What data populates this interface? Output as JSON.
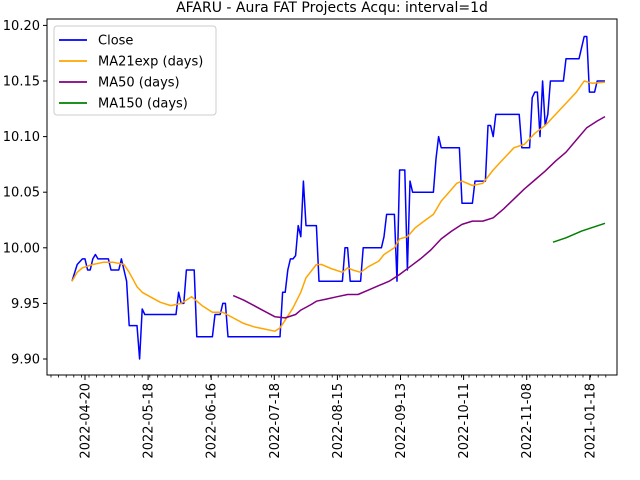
{
  "chart_data": {
    "type": "line",
    "title": "AFARU - Aura FAT Projects Acqu: interval=1d",
    "xlabel": "",
    "ylabel": "",
    "ylim": [
      9.895,
      10.205
    ],
    "grid": false,
    "legend_position": "top-left",
    "x_tick_labels": [
      "2022-04-20",
      "2022-05-18",
      "2022-06-16",
      "2022-07-18",
      "2022-08-15",
      "2022-09-13",
      "2022-10-11",
      "2022-11-08",
      "2021-01-18"
    ],
    "y_tick_labels": [
      "9.90",
      "9.95",
      "10.00",
      "10.05",
      "10.10",
      "10.15",
      "10.20"
    ],
    "series": [
      {
        "name": "Close",
        "color": "#0000ff",
        "points": [
          [
            0,
            9.97
          ],
          [
            2,
            9.985
          ],
          [
            4,
            9.99
          ],
          [
            5,
            9.99
          ],
          [
            6,
            9.98
          ],
          [
            7,
            9.98
          ],
          [
            8,
            9.99
          ],
          [
            9,
            9.994
          ],
          [
            10,
            9.99
          ],
          [
            14,
            9.99
          ],
          [
            15,
            9.98
          ],
          [
            18,
            9.98
          ],
          [
            19,
            9.99
          ],
          [
            20,
            9.98
          ],
          [
            21,
            9.97
          ],
          [
            22,
            9.93
          ],
          [
            25,
            9.93
          ],
          [
            26,
            9.9
          ],
          [
            27,
            9.945
          ],
          [
            28,
            9.94
          ],
          [
            40,
            9.94
          ],
          [
            41,
            9.96
          ],
          [
            42,
            9.95
          ],
          [
            43,
            9.95
          ],
          [
            44,
            9.98
          ],
          [
            47,
            9.98
          ],
          [
            48,
            9.92
          ],
          [
            54,
            9.92
          ],
          [
            55,
            9.94
          ],
          [
            57,
            9.94
          ],
          [
            58,
            9.95
          ],
          [
            59,
            9.95
          ],
          [
            60,
            9.92
          ],
          [
            80,
            9.92
          ],
          [
            81,
            9.96
          ],
          [
            82,
            9.96
          ],
          [
            83,
            9.98
          ],
          [
            84,
            9.99
          ],
          [
            85,
            9.99
          ],
          [
            86,
            9.993
          ],
          [
            87,
            10.02
          ],
          [
            88,
            10.01
          ],
          [
            89,
            10.06
          ],
          [
            90,
            10.02
          ],
          [
            94,
            10.02
          ],
          [
            95,
            9.97
          ],
          [
            104,
            9.97
          ],
          [
            105,
            10.0
          ],
          [
            106,
            10.0
          ],
          [
            107,
            9.97
          ],
          [
            111,
            9.97
          ],
          [
            112,
            10.0
          ],
          [
            119,
            10.0
          ],
          [
            120,
            10.01
          ],
          [
            121,
            10.03
          ],
          [
            124,
            10.03
          ],
          [
            125,
            9.97
          ],
          [
            126,
            10.07
          ],
          [
            128,
            10.07
          ],
          [
            129,
            9.98
          ],
          [
            130,
            10.06
          ],
          [
            131,
            10.05
          ],
          [
            139,
            10.05
          ],
          [
            140,
            10.08
          ],
          [
            141,
            10.1
          ],
          [
            142,
            10.09
          ],
          [
            149,
            10.09
          ],
          [
            150,
            10.04
          ],
          [
            154,
            10.04
          ],
          [
            155,
            10.06
          ],
          [
            159,
            10.06
          ],
          [
            160,
            10.11
          ],
          [
            161,
            10.11
          ],
          [
            162,
            10.1
          ],
          [
            163,
            10.12
          ],
          [
            172,
            10.12
          ],
          [
            173,
            10.09
          ],
          [
            176,
            10.09
          ],
          [
            177,
            10.135
          ],
          [
            178,
            10.14
          ],
          [
            179,
            10.14
          ],
          [
            180,
            10.1
          ],
          [
            181,
            10.15
          ],
          [
            182,
            10.11
          ],
          [
            183,
            10.12
          ],
          [
            184,
            10.15
          ],
          [
            189,
            10.15
          ],
          [
            190,
            10.17
          ],
          [
            195,
            10.17
          ],
          [
            197,
            10.19
          ],
          [
            198,
            10.19
          ],
          [
            199,
            10.14
          ],
          [
            201,
            10.14
          ],
          [
            202,
            10.15
          ],
          [
            205,
            10.15
          ]
        ]
      },
      {
        "name": "MA21exp (days)",
        "color": "#ffa500",
        "points": [
          [
            0,
            9.97
          ],
          [
            2,
            9.978
          ],
          [
            4,
            9.982
          ],
          [
            8,
            9.985
          ],
          [
            12,
            9.987
          ],
          [
            16,
            9.987
          ],
          [
            20,
            9.985
          ],
          [
            22,
            9.978
          ],
          [
            25,
            9.965
          ],
          [
            27,
            9.96
          ],
          [
            30,
            9.956
          ],
          [
            34,
            9.951
          ],
          [
            38,
            9.948
          ],
          [
            42,
            9.95
          ],
          [
            46,
            9.956
          ],
          [
            50,
            9.948
          ],
          [
            54,
            9.942
          ],
          [
            58,
            9.942
          ],
          [
            62,
            9.937
          ],
          [
            66,
            9.932
          ],
          [
            70,
            9.929
          ],
          [
            74,
            9.927
          ],
          [
            78,
            9.925
          ],
          [
            80,
            9.928
          ],
          [
            82,
            9.935
          ],
          [
            85,
            9.946
          ],
          [
            88,
            9.96
          ],
          [
            90,
            9.973
          ],
          [
            94,
            9.985
          ],
          [
            96,
            9.985
          ],
          [
            100,
            9.981
          ],
          [
            104,
            9.978
          ],
          [
            106,
            9.982
          ],
          [
            108,
            9.98
          ],
          [
            111,
            9.978
          ],
          [
            114,
            9.983
          ],
          [
            118,
            9.988
          ],
          [
            120,
            9.994
          ],
          [
            124,
            10.0
          ],
          [
            126,
            10.008
          ],
          [
            129,
            10.01
          ],
          [
            132,
            10.018
          ],
          [
            136,
            10.025
          ],
          [
            139,
            10.03
          ],
          [
            142,
            10.042
          ],
          [
            145,
            10.05
          ],
          [
            148,
            10.058
          ],
          [
            150,
            10.06
          ],
          [
            154,
            10.056
          ],
          [
            158,
            10.058
          ],
          [
            162,
            10.07
          ],
          [
            166,
            10.08
          ],
          [
            170,
            10.09
          ],
          [
            174,
            10.093
          ],
          [
            178,
            10.103
          ],
          [
            182,
            10.11
          ],
          [
            186,
            10.12
          ],
          [
            190,
            10.13
          ],
          [
            194,
            10.14
          ],
          [
            197,
            10.15
          ],
          [
            200,
            10.148
          ],
          [
            205,
            10.149
          ]
        ]
      },
      {
        "name": "MA50 (days)",
        "color": "#800080",
        "points": [
          [
            62,
            9.957
          ],
          [
            66,
            9.953
          ],
          [
            70,
            9.948
          ],
          [
            74,
            9.943
          ],
          [
            78,
            9.938
          ],
          [
            82,
            9.937
          ],
          [
            86,
            9.94
          ],
          [
            88,
            9.944
          ],
          [
            92,
            9.949
          ],
          [
            94,
            9.952
          ],
          [
            98,
            9.954
          ],
          [
            102,
            9.956
          ],
          [
            106,
            9.958
          ],
          [
            110,
            9.958
          ],
          [
            114,
            9.962
          ],
          [
            118,
            9.966
          ],
          [
            122,
            9.97
          ],
          [
            126,
            9.976
          ],
          [
            130,
            9.983
          ],
          [
            134,
            9.99
          ],
          [
            138,
            9.998
          ],
          [
            142,
            10.008
          ],
          [
            146,
            10.015
          ],
          [
            150,
            10.021
          ],
          [
            154,
            10.024
          ],
          [
            158,
            10.024
          ],
          [
            162,
            10.027
          ],
          [
            166,
            10.035
          ],
          [
            170,
            10.044
          ],
          [
            174,
            10.053
          ],
          [
            178,
            10.061
          ],
          [
            182,
            10.069
          ],
          [
            186,
            10.078
          ],
          [
            190,
            10.086
          ],
          [
            194,
            10.097
          ],
          [
            198,
            10.108
          ],
          [
            202,
            10.114
          ],
          [
            205,
            10.118
          ]
        ]
      },
      {
        "name": "MA150 (days)",
        "color": "#008000",
        "points": [
          [
            185,
            10.005
          ],
          [
            190,
            10.009
          ],
          [
            196,
            10.015
          ],
          [
            205,
            10.022
          ]
        ]
      }
    ]
  }
}
